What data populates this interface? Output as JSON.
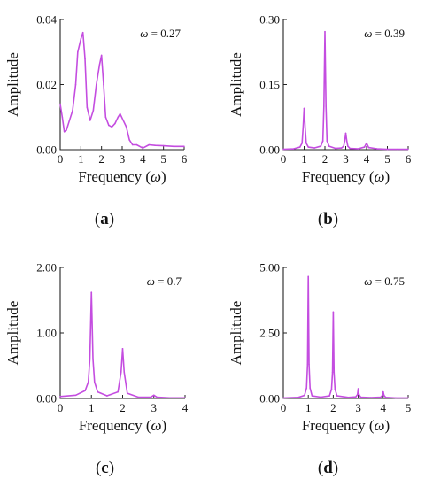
{
  "colors": {
    "series": "#c44de0",
    "axis": "#222222",
    "text": "#111111"
  },
  "chart_data": [
    {
      "panel": "(a)",
      "panel_letter": "a",
      "type": "line",
      "annotation": {
        "prefix": "ω",
        "value": " = 0.27"
      },
      "xlabel": {
        "text": "Frequency (",
        "symbol": "ω",
        "suffix": ")"
      },
      "ylabel": "Amplitude",
      "xlim": [
        0,
        6
      ],
      "ylim": [
        0,
        0.04
      ],
      "xticks": [
        0,
        1,
        2,
        3,
        4,
        5,
        6
      ],
      "yticks": [
        0,
        0.02,
        0.04
      ],
      "ytick_labels": [
        "0.00",
        "0.02",
        "0.04"
      ],
      "grid": false,
      "series": [
        {
          "x": [
            0,
            0.1,
            0.2,
            0.3,
            0.45,
            0.6,
            0.75,
            0.85,
            1.0,
            1.1,
            1.2,
            1.3,
            1.45,
            1.6,
            1.75,
            1.9,
            2.0,
            2.1,
            2.2,
            2.35,
            2.5,
            2.65,
            2.8,
            2.9,
            3.05,
            3.2,
            3.35,
            3.5,
            3.7,
            4.0,
            4.3,
            4.6,
            5.0,
            5.5,
            6.0
          ],
          "y": [
            0.014,
            0.01,
            0.0055,
            0.006,
            0.009,
            0.012,
            0.02,
            0.03,
            0.034,
            0.036,
            0.028,
            0.013,
            0.009,
            0.012,
            0.02,
            0.026,
            0.029,
            0.02,
            0.01,
            0.0075,
            0.007,
            0.008,
            0.01,
            0.011,
            0.009,
            0.007,
            0.003,
            0.0015,
            0.0015,
            0.0005,
            0.0015,
            0.0013,
            0.0012,
            0.001,
            0.001
          ]
        }
      ]
    },
    {
      "panel": "(b)",
      "panel_letter": "b",
      "type": "line",
      "annotation": {
        "prefix": "ω",
        "value": " = 0.39"
      },
      "xlabel": {
        "text": "Frequency (",
        "symbol": "ω",
        "suffix": ")"
      },
      "ylabel": "Amplitude",
      "xlim": [
        0,
        6
      ],
      "ylim": [
        0,
        0.3
      ],
      "xticks": [
        0,
        1,
        2,
        3,
        4,
        5,
        6
      ],
      "yticks": [
        0,
        0.15,
        0.3
      ],
      "ytick_labels": [
        "0.00",
        "0.15",
        "0.30"
      ],
      "grid": false,
      "series": [
        {
          "x": [
            0,
            0.5,
            0.8,
            0.9,
            0.95,
            1.0,
            1.05,
            1.1,
            1.2,
            1.5,
            1.8,
            1.9,
            1.95,
            2.0,
            2.05,
            2.1,
            2.2,
            2.5,
            2.8,
            2.9,
            2.95,
            3.0,
            3.05,
            3.1,
            3.2,
            3.6,
            3.9,
            4.0,
            4.1,
            4.5,
            5.0,
            5.5,
            6.0
          ],
          "y": [
            0.001,
            0.002,
            0.006,
            0.015,
            0.05,
            0.095,
            0.05,
            0.015,
            0.006,
            0.004,
            0.008,
            0.02,
            0.1,
            0.272,
            0.1,
            0.02,
            0.008,
            0.003,
            0.004,
            0.008,
            0.02,
            0.038,
            0.02,
            0.008,
            0.003,
            0.002,
            0.006,
            0.015,
            0.005,
            0.002,
            0.001,
            0.001,
            0.001
          ]
        }
      ]
    },
    {
      "panel": "(c)",
      "panel_letter": "c",
      "type": "line",
      "annotation": {
        "prefix": "ω",
        "value": " = 0.7"
      },
      "xlabel": {
        "text": "Frequency (",
        "symbol": "ω",
        "suffix": ")"
      },
      "ylabel": "Amplitude",
      "xlim": [
        0,
        4
      ],
      "ylim": [
        0,
        2
      ],
      "xticks": [
        0,
        1,
        2,
        3,
        4
      ],
      "yticks": [
        0,
        1,
        2
      ],
      "ytick_labels": [
        "0.00",
        "1.00",
        "2.00"
      ],
      "grid": false,
      "series": [
        {
          "x": [
            0,
            0.5,
            0.8,
            0.9,
            0.95,
            1.0,
            1.05,
            1.1,
            1.2,
            1.5,
            1.85,
            1.95,
            2.0,
            2.05,
            2.15,
            2.5,
            2.9,
            3.0,
            3.1,
            3.5,
            4.0
          ],
          "y": [
            0.03,
            0.05,
            0.12,
            0.25,
            0.6,
            1.62,
            0.6,
            0.25,
            0.1,
            0.04,
            0.1,
            0.4,
            0.76,
            0.4,
            0.08,
            0.02,
            0.02,
            0.05,
            0.02,
            0.01,
            0.01
          ]
        }
      ]
    },
    {
      "panel": "(d)",
      "panel_letter": "d",
      "type": "line",
      "annotation": {
        "prefix": "ω",
        "value": " = 0.75"
      },
      "xlabel": {
        "text": "Frequency (",
        "symbol": "ω",
        "suffix": ")"
      },
      "ylabel": "Amplitude",
      "xlim": [
        0,
        5
      ],
      "ylim": [
        0,
        5
      ],
      "xticks": [
        0,
        1,
        2,
        3,
        4,
        5
      ],
      "yticks": [
        0,
        2.5,
        5
      ],
      "ytick_labels": [
        "0.00",
        "2.50",
        "5.00"
      ],
      "grid": false,
      "series": [
        {
          "x": [
            0,
            0.6,
            0.85,
            0.93,
            0.97,
            1.0,
            1.03,
            1.07,
            1.15,
            1.5,
            1.85,
            1.93,
            1.97,
            2.0,
            2.03,
            2.07,
            2.15,
            2.6,
            2.9,
            2.97,
            3.0,
            3.03,
            3.1,
            3.5,
            3.9,
            3.97,
            4.0,
            4.03,
            4.1,
            4.5,
            5.0
          ],
          "y": [
            0.02,
            0.04,
            0.12,
            0.4,
            1.3,
            4.65,
            1.3,
            0.4,
            0.1,
            0.05,
            0.1,
            0.35,
            1.0,
            3.3,
            1.0,
            0.35,
            0.1,
            0.04,
            0.06,
            0.15,
            0.37,
            0.15,
            0.05,
            0.03,
            0.05,
            0.12,
            0.25,
            0.12,
            0.04,
            0.02,
            0.02
          ]
        }
      ]
    }
  ]
}
